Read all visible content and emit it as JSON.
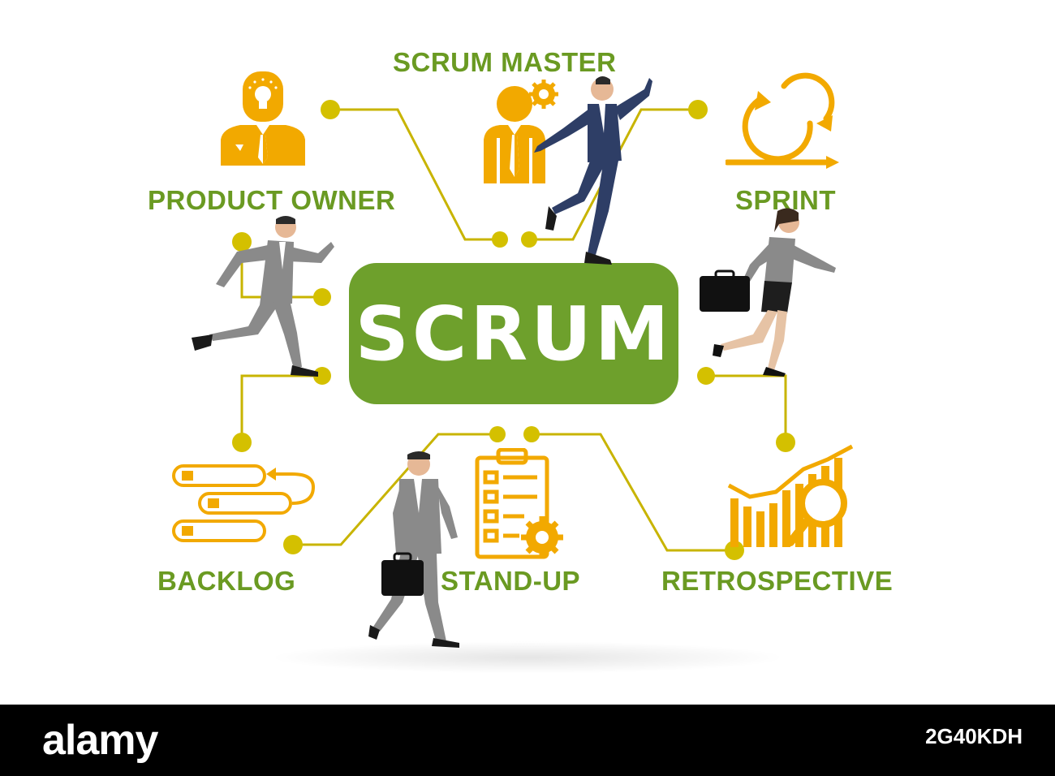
{
  "diagram": {
    "center": "SCRUM",
    "nodes": {
      "scrum_master": "SCRUM MASTER",
      "product_owner": "PRODUCT OWNER",
      "sprint": "SPRINT",
      "backlog": "BACKLOG",
      "stand_up": "STAND-UP",
      "retrospective": "RETROSPECTIVE"
    }
  },
  "footer": {
    "logo": "alamy",
    "image_id": "2G40KDH"
  },
  "colors": {
    "accent_green": "#6ea02c",
    "label_green": "#6a9a22",
    "icon_orange": "#f2a900",
    "connector_olive": "#c8b400"
  }
}
